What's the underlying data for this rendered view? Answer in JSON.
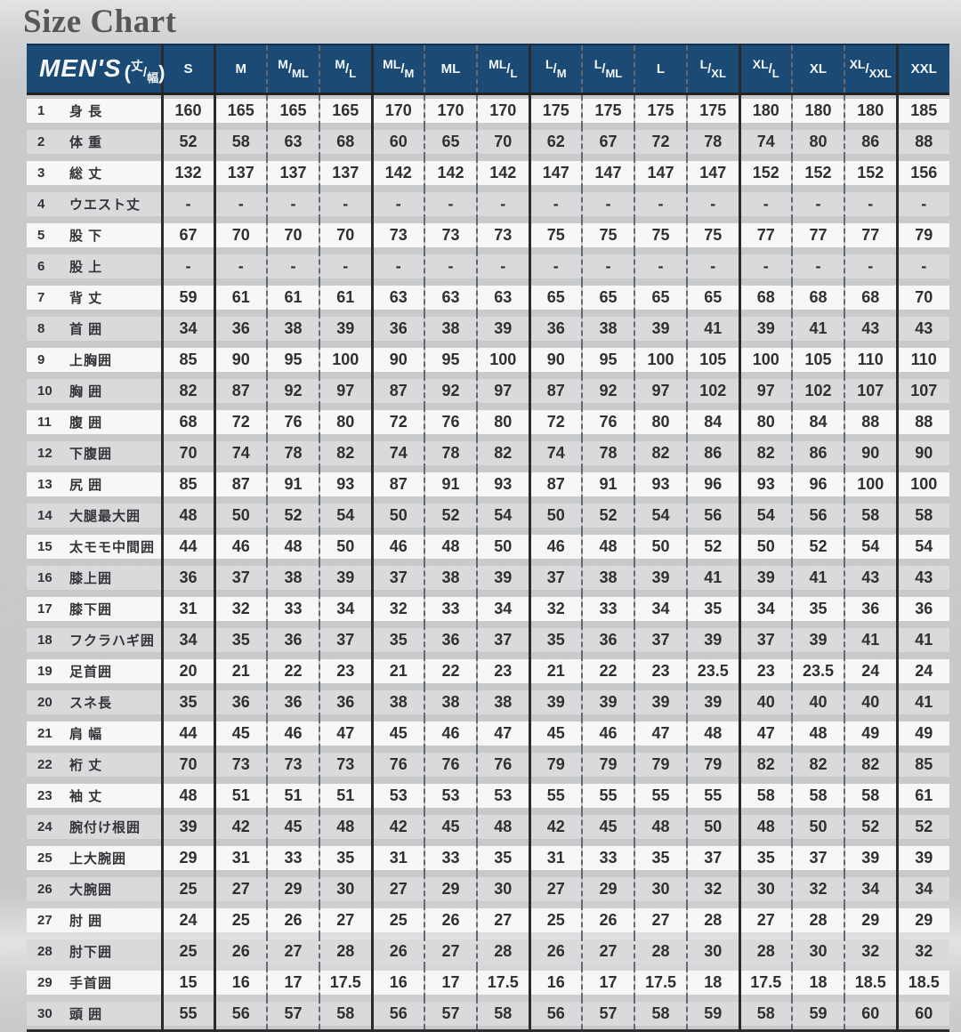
{
  "title": "Size Chart",
  "header": {
    "men_label": "MEN'S",
    "note_open": "(",
    "note_top": "丈",
    "note_slash": "/",
    "note_bottom": "幅",
    "note_close": ")"
  },
  "colors": {
    "header_navy": "#1b4a74",
    "row_white": "#f7f7f8",
    "row_gray": "#d9dadb",
    "solid_line": "#2a2b2d",
    "dashed_line": "#66696d",
    "title_gray": "#575757"
  },
  "chart_data": {
    "type": "table",
    "title": "Size Chart",
    "corner_label": "MEN'S (丈/幅)",
    "column_groups": [
      [
        "S"
      ],
      [
        "M",
        "M/ML",
        "M/L"
      ],
      [
        "ML/M",
        "ML",
        "ML/L"
      ],
      [
        "L/M",
        "L/ML",
        "L",
        "L/XL"
      ],
      [
        "XL/L",
        "XL",
        "XL/XXL"
      ],
      [
        "XXL"
      ]
    ],
    "columns": [
      "S",
      "M",
      "M/ML",
      "M/L",
      "ML/M",
      "ML",
      "ML/L",
      "L/M",
      "L/ML",
      "L",
      "L/XL",
      "XL/L",
      "XL",
      "XL/XXL",
      "XXL"
    ],
    "rows": [
      {
        "no": "1",
        "label": "身 長",
        "values": [
          "160",
          "165",
          "165",
          "165",
          "170",
          "170",
          "170",
          "175",
          "175",
          "175",
          "175",
          "180",
          "180",
          "180",
          "185"
        ]
      },
      {
        "no": "2",
        "label": "体 重",
        "values": [
          "52",
          "58",
          "63",
          "68",
          "60",
          "65",
          "70",
          "62",
          "67",
          "72",
          "78",
          "74",
          "80",
          "86",
          "88"
        ]
      },
      {
        "no": "3",
        "label": "総 丈",
        "values": [
          "132",
          "137",
          "137",
          "137",
          "142",
          "142",
          "142",
          "147",
          "147",
          "147",
          "147",
          "152",
          "152",
          "152",
          "156"
        ]
      },
      {
        "no": "4",
        "label": "ウエスト丈",
        "values": [
          "-",
          "-",
          "-",
          "-",
          "-",
          "-",
          "-",
          "-",
          "-",
          "-",
          "-",
          "-",
          "-",
          "-",
          "-"
        ]
      },
      {
        "no": "5",
        "label": "股 下",
        "values": [
          "67",
          "70",
          "70",
          "70",
          "73",
          "73",
          "73",
          "75",
          "75",
          "75",
          "75",
          "77",
          "77",
          "77",
          "79"
        ]
      },
      {
        "no": "6",
        "label": "股 上",
        "values": [
          "-",
          "-",
          "-",
          "-",
          "-",
          "-",
          "-",
          "-",
          "-",
          "-",
          "-",
          "-",
          "-",
          "-",
          "-"
        ]
      },
      {
        "no": "7",
        "label": "背 丈",
        "values": [
          "59",
          "61",
          "61",
          "61",
          "63",
          "63",
          "63",
          "65",
          "65",
          "65",
          "65",
          "68",
          "68",
          "68",
          "70"
        ]
      },
      {
        "no": "8",
        "label": "首 囲",
        "values": [
          "34",
          "36",
          "38",
          "39",
          "36",
          "38",
          "39",
          "36",
          "38",
          "39",
          "41",
          "39",
          "41",
          "43",
          "43"
        ]
      },
      {
        "no": "9",
        "label": "上胸囲",
        "values": [
          "85",
          "90",
          "95",
          "100",
          "90",
          "95",
          "100",
          "90",
          "95",
          "100",
          "105",
          "100",
          "105",
          "110",
          "110"
        ]
      },
      {
        "no": "10",
        "label": "胸 囲",
        "values": [
          "82",
          "87",
          "92",
          "97",
          "87",
          "92",
          "97",
          "87",
          "92",
          "97",
          "102",
          "97",
          "102",
          "107",
          "107"
        ]
      },
      {
        "no": "11",
        "label": "腹 囲",
        "values": [
          "68",
          "72",
          "76",
          "80",
          "72",
          "76",
          "80",
          "72",
          "76",
          "80",
          "84",
          "80",
          "84",
          "88",
          "88"
        ]
      },
      {
        "no": "12",
        "label": "下腹囲",
        "values": [
          "70",
          "74",
          "78",
          "82",
          "74",
          "78",
          "82",
          "74",
          "78",
          "82",
          "86",
          "82",
          "86",
          "90",
          "90"
        ]
      },
      {
        "no": "13",
        "label": "尻 囲",
        "values": [
          "85",
          "87",
          "91",
          "93",
          "87",
          "91",
          "93",
          "87",
          "91",
          "93",
          "96",
          "93",
          "96",
          "100",
          "100"
        ]
      },
      {
        "no": "14",
        "label": "大腿最大囲",
        "values": [
          "48",
          "50",
          "52",
          "54",
          "50",
          "52",
          "54",
          "50",
          "52",
          "54",
          "56",
          "54",
          "56",
          "58",
          "58"
        ]
      },
      {
        "no": "15",
        "label": "太モモ中間囲",
        "values": [
          "44",
          "46",
          "48",
          "50",
          "46",
          "48",
          "50",
          "46",
          "48",
          "50",
          "52",
          "50",
          "52",
          "54",
          "54"
        ]
      },
      {
        "no": "16",
        "label": "膝上囲",
        "values": [
          "36",
          "37",
          "38",
          "39",
          "37",
          "38",
          "39",
          "37",
          "38",
          "39",
          "41",
          "39",
          "41",
          "43",
          "43"
        ]
      },
      {
        "no": "17",
        "label": "膝下囲",
        "values": [
          "31",
          "32",
          "33",
          "34",
          "32",
          "33",
          "34",
          "32",
          "33",
          "34",
          "35",
          "34",
          "35",
          "36",
          "36"
        ]
      },
      {
        "no": "18",
        "label": "フクラハギ囲",
        "values": [
          "34",
          "35",
          "36",
          "37",
          "35",
          "36",
          "37",
          "35",
          "36",
          "37",
          "39",
          "37",
          "39",
          "41",
          "41"
        ]
      },
      {
        "no": "19",
        "label": "足首囲",
        "values": [
          "20",
          "21",
          "22",
          "23",
          "21",
          "22",
          "23",
          "21",
          "22",
          "23",
          "23.5",
          "23",
          "23.5",
          "24",
          "24"
        ]
      },
      {
        "no": "20",
        "label": "スネ長",
        "values": [
          "35",
          "36",
          "36",
          "36",
          "38",
          "38",
          "38",
          "39",
          "39",
          "39",
          "39",
          "40",
          "40",
          "40",
          "41"
        ]
      },
      {
        "no": "21",
        "label": "肩 幅",
        "values": [
          "44",
          "45",
          "46",
          "47",
          "45",
          "46",
          "47",
          "45",
          "46",
          "47",
          "48",
          "47",
          "48",
          "49",
          "49"
        ]
      },
      {
        "no": "22",
        "label": "裄 丈",
        "values": [
          "70",
          "73",
          "73",
          "73",
          "76",
          "76",
          "76",
          "79",
          "79",
          "79",
          "79",
          "82",
          "82",
          "82",
          "85"
        ]
      },
      {
        "no": "23",
        "label": "袖 丈",
        "values": [
          "48",
          "51",
          "51",
          "51",
          "53",
          "53",
          "53",
          "55",
          "55",
          "55",
          "55",
          "58",
          "58",
          "58",
          "61"
        ]
      },
      {
        "no": "24",
        "label": "腕付け根囲",
        "values": [
          "39",
          "42",
          "45",
          "48",
          "42",
          "45",
          "48",
          "42",
          "45",
          "48",
          "50",
          "48",
          "50",
          "52",
          "52"
        ]
      },
      {
        "no": "25",
        "label": "上大腕囲",
        "values": [
          "29",
          "31",
          "33",
          "35",
          "31",
          "33",
          "35",
          "31",
          "33",
          "35",
          "37",
          "35",
          "37",
          "39",
          "39"
        ]
      },
      {
        "no": "26",
        "label": "大腕囲",
        "values": [
          "25",
          "27",
          "29",
          "30",
          "27",
          "29",
          "30",
          "27",
          "29",
          "30",
          "32",
          "30",
          "32",
          "34",
          "34"
        ]
      },
      {
        "no": "27",
        "label": "肘 囲",
        "values": [
          "24",
          "25",
          "26",
          "27",
          "25",
          "26",
          "27",
          "25",
          "26",
          "27",
          "28",
          "27",
          "28",
          "29",
          "29"
        ]
      },
      {
        "no": "28",
        "label": "肘下囲",
        "values": [
          "25",
          "26",
          "27",
          "28",
          "26",
          "27",
          "28",
          "26",
          "27",
          "28",
          "30",
          "28",
          "30",
          "32",
          "32"
        ]
      },
      {
        "no": "29",
        "label": "手首囲",
        "values": [
          "15",
          "16",
          "17",
          "17.5",
          "16",
          "17",
          "17.5",
          "16",
          "17",
          "17.5",
          "18",
          "17.5",
          "18",
          "18.5",
          "18.5"
        ]
      },
      {
        "no": "30",
        "label": "頭 囲",
        "values": [
          "55",
          "56",
          "57",
          "58",
          "56",
          "57",
          "58",
          "56",
          "57",
          "58",
          "59",
          "58",
          "59",
          "60",
          "60"
        ]
      }
    ]
  }
}
